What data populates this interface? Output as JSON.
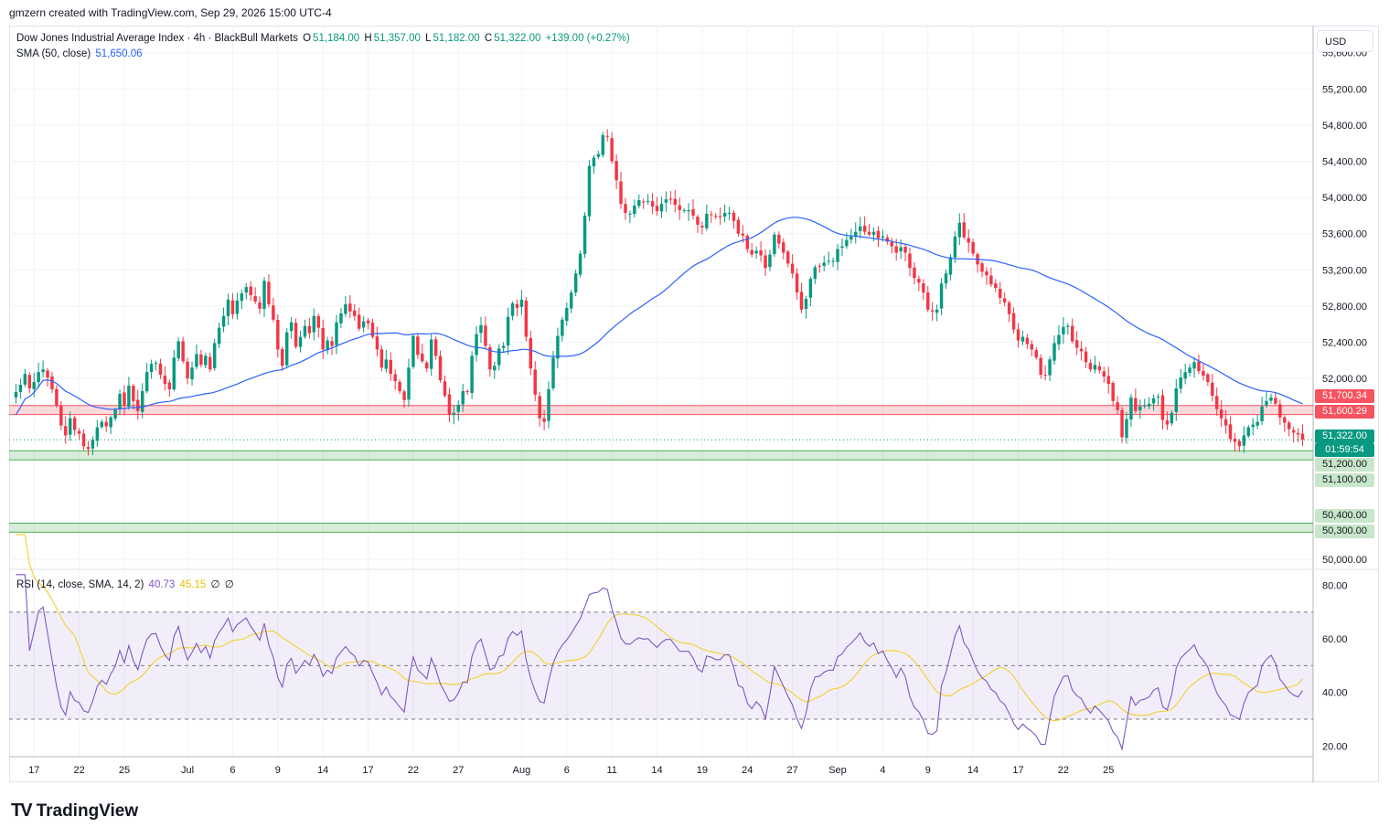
{
  "header": {
    "credit": "gmzern created with TradingView.com, Sep 29, 2026 15:00 UTC-4"
  },
  "legend": {
    "symbol": "Dow Jones Industrial Average Index · 4h · BlackBull Markets",
    "open_label": "O",
    "open": "51,184.00",
    "high_label": "H",
    "high": "51,357.00",
    "low_label": "L",
    "low": "51,182.00",
    "close_label": "C",
    "close": "51,322.00",
    "change": "+139.00 (+0.27%)",
    "sma_label": "SMA (50, close)",
    "sma_value": "51,650.06",
    "rsi_label": "RSI (14, close, SMA, 14, 2)",
    "rsi_value": "40.73",
    "rsi_ma_value": "45.15",
    "rsi_extra1": "∅",
    "rsi_extra2": "∅"
  },
  "currency": "USD",
  "brand": {
    "name": "TradingView"
  },
  "colors": {
    "up": "#089981",
    "down": "#f23645",
    "sma": "#2962ff",
    "rsi": "#7e57c2",
    "rsi_ma": "#f2d33d",
    "resistance": "#f7525f",
    "support": "#4caf50"
  },
  "chart_data": [
    {
      "type": "candlestick",
      "title": "Dow Jones Industrial Average Index · 4h · BlackBull Markets",
      "ylim": [
        49900,
        55900
      ],
      "price_ticks": [
        "55,600.00",
        "55,200.00",
        "54,800.00",
        "54,400.00",
        "54,000.00",
        "53,600.00",
        "53,200.00",
        "52,800.00",
        "52,400.00",
        "52,000.00",
        "50,000.00"
      ],
      "price_tick_values": [
        55600,
        55200,
        54800,
        54400,
        54000,
        53600,
        53200,
        52800,
        52400,
        52000,
        50000
      ],
      "x_ticks": [
        "17",
        "22",
        "25",
        "Jul",
        "6",
        "9",
        "14",
        "17",
        "22",
        "27",
        "Aug",
        "6",
        "11",
        "14",
        "19",
        "24",
        "27",
        "Sep",
        "4",
        "9",
        "14",
        "17",
        "22",
        "25"
      ],
      "x_tick_index": [
        4,
        14,
        24,
        38,
        48,
        58,
        68,
        78,
        88,
        98,
        112,
        122,
        132,
        142,
        152,
        162,
        172,
        182,
        192,
        202,
        212,
        222,
        232,
        242
      ],
      "series_closes": [
        51850,
        51930,
        52050,
        51890,
        51960,
        52070,
        52100,
        52010,
        51880,
        51700,
        51480,
        51370,
        51560,
        51430,
        51390,
        51250,
        51220,
        51320,
        51460,
        51520,
        51470,
        51570,
        51650,
        51830,
        51700,
        51920,
        51750,
        51640,
        51860,
        52070,
        52160,
        52170,
        52040,
        51940,
        51880,
        52230,
        52410,
        52190,
        52000,
        52120,
        52270,
        52150,
        52250,
        52100,
        52390,
        52560,
        52690,
        52870,
        52710,
        52860,
        52940,
        53010,
        52920,
        52850,
        52770,
        53080,
        52820,
        52650,
        52320,
        52140,
        52510,
        52620,
        52350,
        52460,
        52580,
        52500,
        52690,
        52560,
        52320,
        52420,
        52360,
        52620,
        52720,
        52820,
        52740,
        52690,
        52550,
        52630,
        52610,
        52460,
        52320,
        52120,
        52210,
        52050,
        51970,
        51860,
        51760,
        52120,
        52470,
        52260,
        52190,
        52110,
        52430,
        52250,
        51980,
        51810,
        51600,
        51620,
        51710,
        51860,
        51850,
        52250,
        52490,
        52590,
        52360,
        52100,
        52140,
        52330,
        52360,
        52680,
        52830,
        52780,
        52870,
        52460,
        52110,
        51820,
        51560,
        51520,
        51880,
        52230,
        52470,
        52650,
        52780,
        52950,
        53160,
        53380,
        53800,
        54350,
        54440,
        54480,
        54690,
        54670,
        54400,
        54190,
        53930,
        53830,
        53820,
        53910,
        53970,
        53950,
        53960,
        53900,
        53850,
        53930,
        53980,
        53980,
        53920,
        53860,
        53860,
        53860,
        53800,
        53700,
        53670,
        53820,
        53810,
        53790,
        53790,
        53830,
        53830,
        53740,
        53600,
        53580,
        53430,
        53370,
        53410,
        53360,
        53220,
        53370,
        53590,
        53490,
        53390,
        53270,
        53160,
        52950,
        52760,
        52880,
        53100,
        53230,
        53240,
        53280,
        53300,
        53300,
        53430,
        53460,
        53530,
        53570,
        53620,
        53680,
        53620,
        53590,
        53620,
        53550,
        53570,
        53510,
        53460,
        53390,
        53450,
        53390,
        53220,
        53110,
        53060,
        52950,
        52760,
        52740,
        52760,
        53050,
        53160,
        53340,
        53570,
        53720,
        53560,
        53500,
        53380,
        53260,
        53180,
        53140,
        53040,
        53000,
        52890,
        52840,
        52710,
        52540,
        52420,
        52460,
        52380,
        52320,
        52230,
        52040,
        52040,
        52210,
        52390,
        52480,
        52570,
        52580,
        52410,
        52340,
        52300,
        52180,
        52100,
        52150,
        52090,
        52020,
        51940,
        51750,
        51650,
        51350,
        51550,
        51790,
        51640,
        51690,
        51700,
        51720,
        51780,
        51800,
        51540,
        51490,
        51620,
        51890,
        52010,
        52070,
        52120,
        52180,
        52080,
        52030,
        51960,
        51810,
        51660,
        51560,
        51480,
        51330,
        51300,
        51250,
        51370,
        51460,
        51490,
        51520,
        51690,
        51750,
        51790,
        51720,
        51570,
        51510,
        51440,
        51400,
        51380,
        51322
      ],
      "sma_last": 51650.06,
      "levels": [
        {
          "kind": "resistance",
          "top": 51700.34,
          "bottom": 51600.29,
          "labels": [
            "51,700.34",
            "51,600.29"
          ]
        },
        {
          "kind": "support",
          "top": 51200.0,
          "bottom": 51100.0,
          "labels": [
            "51,200.00",
            "51,100.00"
          ]
        },
        {
          "kind": "support",
          "top": 50400.0,
          "bottom": 50300.0,
          "labels": [
            "50,400.00",
            "50,300.00"
          ]
        }
      ],
      "last_price": {
        "value": 51322.0,
        "label": "51,322.00",
        "countdown": "01:59:54"
      }
    },
    {
      "type": "line",
      "title": "RSI (14, close, SMA, 14, 2)",
      "ylim": [
        16,
        86
      ],
      "ticks": [
        "80.00",
        "60.00",
        "40.00",
        "20.00"
      ],
      "tick_values": [
        80,
        60,
        40,
        20
      ],
      "band": [
        30,
        70
      ],
      "midline": 50,
      "last_rsi": 40.73,
      "last_ma": 45.15
    }
  ]
}
